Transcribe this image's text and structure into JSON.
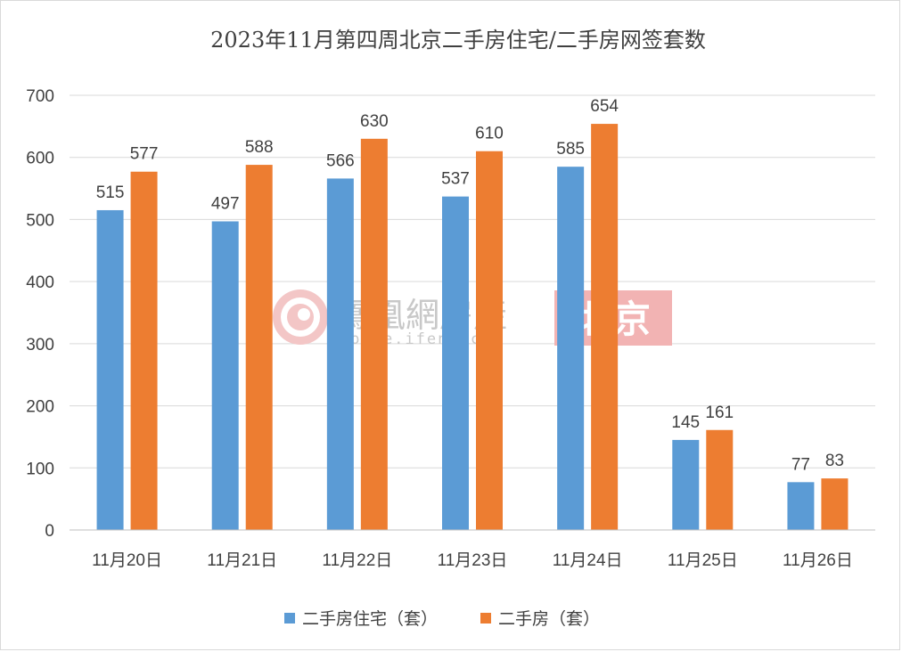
{
  "chart_data": {
    "type": "bar",
    "title": "2023年11月第四周北京二手房住宅/二手房网签套数",
    "categories": [
      "11月20日",
      "11月21日",
      "11月22日",
      "11月23日",
      "11月24日",
      "11月25日",
      "11月26日"
    ],
    "series": [
      {
        "name": "二手房住宅（套）",
        "color": "#5b9bd5",
        "values": [
          515,
          497,
          566,
          537,
          585,
          145,
          77
        ]
      },
      {
        "name": "二手房（套）",
        "color": "#ed7d31",
        "values": [
          577,
          588,
          630,
          610,
          654,
          161,
          83
        ]
      }
    ],
    "ylim": [
      0,
      700
    ],
    "yticks": [
      "0",
      "100",
      "200",
      "300",
      "400",
      "500",
      "600",
      "700"
    ],
    "grid": true,
    "legend_position": "bottom"
  },
  "watermark": {
    "brand": "鳳凰網房產",
    "url": "house.ifeng.com",
    "city": "北京"
  }
}
